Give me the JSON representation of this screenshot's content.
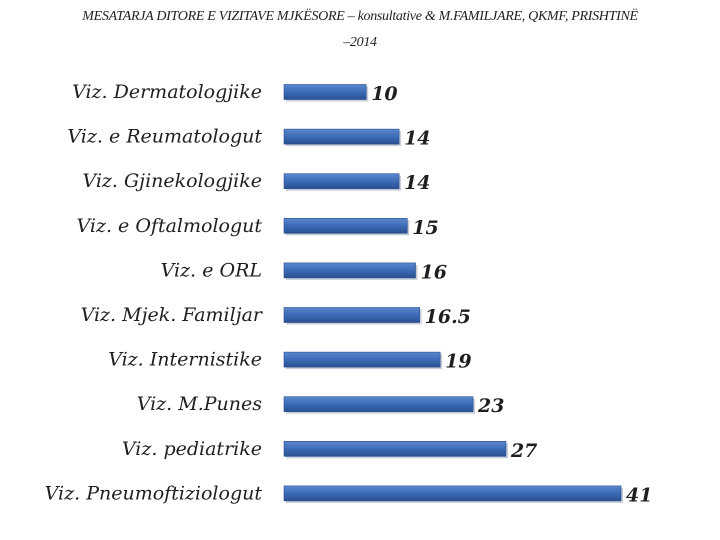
{
  "chart_data": {
    "type": "bar",
    "orientation": "horizontal",
    "title_line1": "MESATARJA  DITORE E  VIZITAVE MJKËSORE – konsultative    & M.FAMILJARE, QKMF, PRISHTINË",
    "title_line2": "–2014",
    "categories": [
      "Viz. Dermatologjike",
      "Viz. e Reumatologut",
      "Viz. Gjinekologjike",
      "Viz. e Oftalmologut",
      "Viz. e ORL",
      "Viz. Mjek. Familjar",
      "Viz. Internistike",
      "Viz. M.Punes",
      "Viz. pediatrike",
      "Viz. Pneumoftiziologut"
    ],
    "values": [
      10,
      14,
      14,
      15,
      16,
      16.5,
      19,
      23,
      27,
      41
    ],
    "data_labels": [
      "10",
      "14",
      "14",
      "15",
      "16",
      "16.5",
      "19",
      "23",
      "27",
      "41"
    ],
    "xlim": [
      0,
      45
    ],
    "grid": false,
    "legend": "none",
    "bar_color": "#3a68b4",
    "bar_color_light": "#5a87cc",
    "bar_color_dark": "#2a4f8f"
  }
}
